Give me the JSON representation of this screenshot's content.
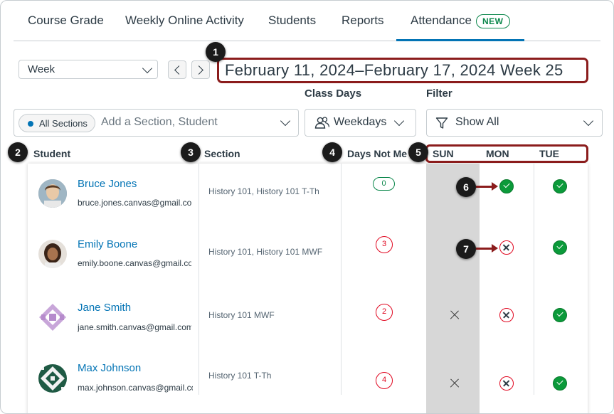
{
  "tabs": [
    {
      "label": "Course Grade"
    },
    {
      "label": "Weekly Online Activity"
    },
    {
      "label": "Students"
    },
    {
      "label": "Reports"
    },
    {
      "label": "Attendance",
      "badge": "NEW",
      "active": true
    }
  ],
  "controls": {
    "period_select": "Week",
    "date_range": "February 11, 2024–February 17, 2024 Week 25",
    "class_days_label": "Class Days",
    "class_days_value": "Weekdays",
    "filter_label": "Filter",
    "filter_value": "Show All",
    "section_chip": "All Sections",
    "search_placeholder": "Add a Section, Student"
  },
  "callouts": [
    "1",
    "2",
    "3",
    "4",
    "5",
    "6",
    "7"
  ],
  "table": {
    "headers": {
      "student": "Student",
      "section": "Section",
      "days_not_met": "Days Not Me",
      "days": [
        "SUN",
        "MON",
        "TUE"
      ]
    },
    "rows": [
      {
        "name": "Bruce Jones",
        "email": "bruce.jones.canvas@gmail.com",
        "section": "History 101, History 101 T-Th",
        "days_not_met": "0",
        "sun": "none",
        "mon": "present",
        "tue": "present"
      },
      {
        "name": "Emily Boone",
        "email": "emily.boone.canvas@gmail.com",
        "section": "History 101, History 101 MWF",
        "days_not_met": "3",
        "sun": "none",
        "mon": "absent",
        "tue": "present"
      },
      {
        "name": "Jane Smith",
        "email": "jane.smith.canvas@gmail.com",
        "section": "History 101 MWF",
        "days_not_met": "2",
        "sun": "not-class-day",
        "mon": "absent",
        "tue": "present"
      },
      {
        "name": "Max Johnson",
        "email": "max.johnson.canvas@gmail.com",
        "section": "History 101 T-Th",
        "days_not_met": "4",
        "sun": "not-class-day",
        "mon": "absent",
        "tue": "present"
      }
    ]
  },
  "colors": {
    "accent": "#0374b5",
    "success": "#0b874b",
    "danger": "#e0061f",
    "callout_outline": "#8b1c1c"
  }
}
